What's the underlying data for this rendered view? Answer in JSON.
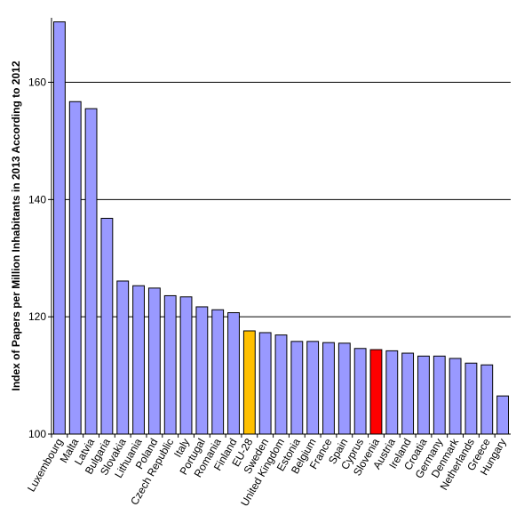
{
  "chart_data": {
    "type": "bar",
    "ylabel": "Index of Papers per Million Inhabitants in 2013 According to 2012",
    "ylim": [
      100,
      171
    ],
    "yticks": [
      100,
      120,
      140,
      160
    ],
    "grid": "horizontal",
    "categories": [
      "Luxembourg",
      "Malta",
      "Latvia",
      "Bulgaria",
      "Slovakia",
      "Lithuania",
      "Poland",
      "Czech Republic",
      "Italy",
      "Portugal",
      "Romania",
      "Finland",
      "EU-28",
      "Sweden",
      "United Kingdom",
      "Estonia",
      "Belgium",
      "France",
      "Spain",
      "Cyprus",
      "Slovenia",
      "Austria",
      "Ireland",
      "Croatia",
      "Germany",
      "Denmark",
      "Netherlands",
      "Greece",
      "Hungary"
    ],
    "values": [
      170.3,
      156.7,
      155.5,
      136.8,
      126.1,
      125.3,
      124.9,
      123.6,
      123.4,
      121.7,
      121.2,
      120.7,
      117.6,
      117.3,
      116.9,
      115.8,
      115.8,
      115.6,
      115.5,
      114.6,
      114.4,
      114.2,
      113.8,
      113.3,
      113.3,
      112.9,
      112.1,
      111.8,
      106.5
    ],
    "colors": {
      "default": "#9999ff",
      "highlight_eu": "#ffc000",
      "highlight_slovenia": "#ff0000",
      "outline": "#000000",
      "grid": "#000000"
    },
    "highlights": {
      "EU-28": "highlight_eu",
      "Slovenia": "highlight_slovenia"
    }
  }
}
